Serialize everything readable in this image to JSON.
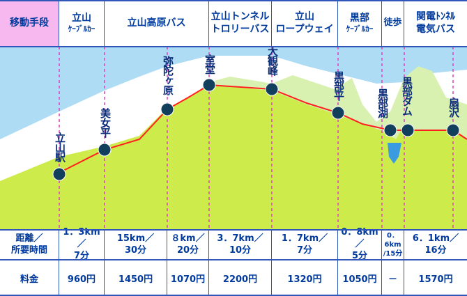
{
  "header": {
    "label": "移動手段",
    "routes": [
      {
        "l1": "立山",
        "l2": "ｹｰﾌﾞﾙｶｰ"
      },
      {
        "l1": "立山高原バス",
        "l2": ""
      },
      {
        "l1": "立山トンネル",
        "l2": "トロリーバス"
      },
      {
        "l1": "立山",
        "l2": "ロープウェイ"
      },
      {
        "l1": "黒部",
        "l2": "ｹｰﾌﾞﾙｶｰ"
      },
      {
        "l1": "徒歩",
        "l2": ""
      },
      {
        "l1": "関電ﾄﾝﾈﾙ",
        "l2": "電気バス"
      }
    ]
  },
  "distance_row": {
    "label_l1": "距離／",
    "label_l2": "所要時間",
    "values": [
      {
        "l1": "1．3km／",
        "l2": "7分"
      },
      {
        "l1": "15km／",
        "l2": "30分"
      },
      {
        "l1": "８km／",
        "l2": "20分"
      },
      {
        "l1": "3．7km／",
        "l2": "10分"
      },
      {
        "l1": "1．7km／",
        "l2": "7分"
      },
      {
        "l1": "0．8km／",
        "l2": "5分"
      },
      {
        "l1": "0．6km",
        "l2": "/15分"
      },
      {
        "l1": "6．1km／",
        "l2": "16分"
      }
    ]
  },
  "fare_row": {
    "label": "料金",
    "values": [
      "960円",
      "1450円",
      "1070円",
      "2200円",
      "1320円",
      "1050円",
      "－",
      "1570円"
    ]
  },
  "stations": [
    "立山駅",
    "美女平",
    "弥陀ヶ原",
    "室堂",
    "大観峰",
    "黒部平",
    "黒部湖",
    "黒部ダム",
    "扇沢"
  ],
  "colors": {
    "sky": "#aedcf5",
    "snow": "#ffffff",
    "slope": "#cdeb4a",
    "mountain": "#d8f0b0",
    "route_line": "#ff2020",
    "station_dot": "#113f5c",
    "divider": "#e040c0",
    "label_bg": "#f6b8ee"
  }
}
